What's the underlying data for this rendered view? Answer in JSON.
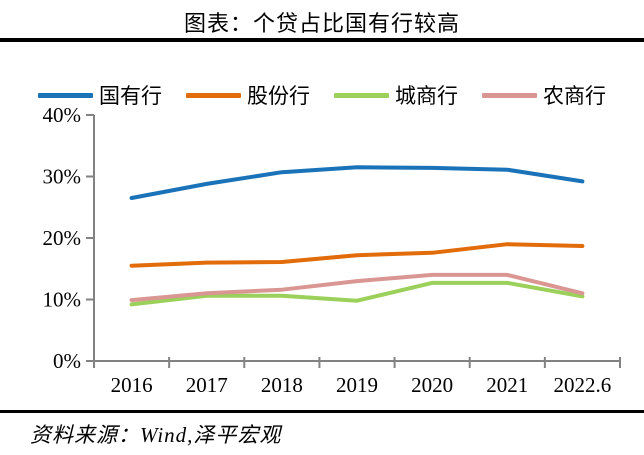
{
  "header": {
    "title": "图表：个贷占比国有行较高"
  },
  "footer": {
    "source": "资料来源：Wind,泽平宏观"
  },
  "colors": {
    "axis": "#828282",
    "rule": "#000000",
    "background": "#ffffff",
    "series_blue": "#1A72B8",
    "series_orange": "#E26B0A",
    "series_green": "#9BD05A",
    "series_pink": "#D99693"
  },
  "chart_data": {
    "type": "line",
    "title": "图表：个贷占比国有行较高",
    "categories": [
      "2016",
      "2017",
      "2018",
      "2019",
      "2020",
      "2021",
      "2022.6"
    ],
    "series": [
      {
        "name": "国有行",
        "color": "#1A72B8",
        "values": [
          26.5,
          28.8,
          30.7,
          31.5,
          31.4,
          31.1,
          29.2
        ]
      },
      {
        "name": "股份行",
        "color": "#E26B0A",
        "values": [
          15.5,
          16.0,
          16.1,
          17.2,
          17.6,
          19.0,
          18.7
        ]
      },
      {
        "name": "城商行",
        "color": "#9BD05A",
        "values": [
          9.2,
          10.6,
          10.6,
          9.8,
          12.7,
          12.7,
          10.5
        ]
      },
      {
        "name": "农商行",
        "color": "#D99693",
        "values": [
          9.9,
          11.0,
          11.6,
          13.0,
          14.0,
          14.0,
          11.0
        ]
      }
    ],
    "xlabel": "",
    "ylabel": "",
    "ylim": [
      0,
      40
    ],
    "ytick_step": 10,
    "ytick_labels": [
      "40%",
      "30%",
      "20%",
      "10%",
      "0%"
    ],
    "grid": false,
    "legend_position": "top",
    "source": "资料来源：Wind,泽平宏观"
  }
}
